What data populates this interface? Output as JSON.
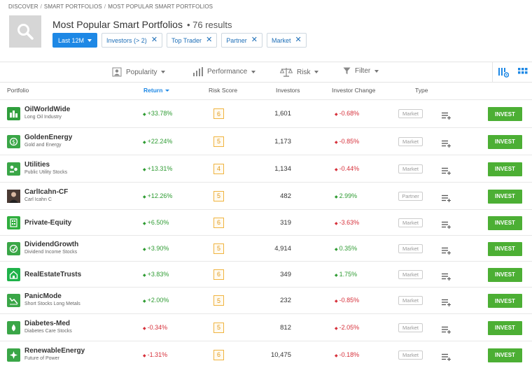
{
  "breadcrumb": [
    "DISCOVER",
    "SMART PORTFOLIOS",
    "MOST POPULAR SMART PORTFOLIOS"
  ],
  "header": {
    "title": "Most Popular Smart Portfolios",
    "result_count": "• 76 results"
  },
  "filters": {
    "period": "Last 12M",
    "chips": [
      "Investors (> 2)",
      "Top Trader",
      "Partner",
      "Market"
    ]
  },
  "toolbar": {
    "popularity": "Popularity",
    "performance": "Performance",
    "risk": "Risk",
    "filter": "Filter"
  },
  "columns": {
    "portfolio": "Portfolio",
    "return": "Return",
    "risk": "Risk Score",
    "investors": "Investors",
    "change": "Investor Change",
    "type": "Type"
  },
  "invest_label": "INVEST",
  "rows": [
    {
      "name": "OilWorldWide",
      "sub": "Long Oil Industry",
      "ret": "+33.78%",
      "ret_dir": "pos",
      "risk": "6",
      "investors": "1,601",
      "change": "-0.68%",
      "change_dir": "neg",
      "type": "Market",
      "icon_color": "#2f9e3c"
    },
    {
      "name": "GoldenEnergy",
      "sub": "Gold and Energy",
      "ret": "+22.24%",
      "ret_dir": "pos",
      "risk": "5",
      "investors": "1,173",
      "change": "-0.85%",
      "change_dir": "neg",
      "type": "Market",
      "icon_color": "#3aa647"
    },
    {
      "name": "Utilities",
      "sub": "Public Utility Stocks",
      "ret": "+13.31%",
      "ret_dir": "pos",
      "risk": "4",
      "investors": "1,134",
      "change": "-0.44%",
      "change_dir": "neg",
      "type": "Market",
      "icon_color": "#3aa647"
    },
    {
      "name": "CarlIcahn-CF",
      "sub": "Carl Icahn C",
      "ret": "+12.26%",
      "ret_dir": "pos",
      "risk": "5",
      "investors": "482",
      "change": "2.99%",
      "change_dir": "pos",
      "type": "Partner",
      "icon_color": "#5a3f35"
    },
    {
      "name": "Private-Equity",
      "sub": "",
      "ret": "+6.50%",
      "ret_dir": "pos",
      "risk": "6",
      "investors": "319",
      "change": "-3.63%",
      "change_dir": "neg",
      "type": "Market",
      "icon_color": "#2fae3e"
    },
    {
      "name": "DividendGrowth",
      "sub": "Dividend Income Stocks",
      "ret": "+3.90%",
      "ret_dir": "pos",
      "risk": "5",
      "investors": "4,914",
      "change": "0.35%",
      "change_dir": "pos",
      "type": "Market",
      "icon_color": "#3aa647"
    },
    {
      "name": "RealEstateTrusts",
      "sub": "",
      "ret": "+3.83%",
      "ret_dir": "pos",
      "risk": "6",
      "investors": "349",
      "change": "1.75%",
      "change_dir": "pos",
      "type": "Market",
      "icon_color": "#1fb24a"
    },
    {
      "name": "PanicMode",
      "sub": "Short Stocks Long Metals",
      "ret": "+2.00%",
      "ret_dir": "pos",
      "risk": "5",
      "investors": "232",
      "change": "-0.85%",
      "change_dir": "neg",
      "type": "Market",
      "icon_color": "#3aa647"
    },
    {
      "name": "Diabetes-Med",
      "sub": "Diabetes Care Stocks",
      "ret": "-0.34%",
      "ret_dir": "neg",
      "risk": "5",
      "investors": "812",
      "change": "-2.05%",
      "change_dir": "neg",
      "type": "Market",
      "icon_color": "#3aa647"
    },
    {
      "name": "RenewableEnergy",
      "sub": "Future of Power",
      "ret": "-1.31%",
      "ret_dir": "neg",
      "risk": "6",
      "investors": "10,475",
      "change": "-0.18%",
      "change_dir": "neg",
      "type": "Market",
      "icon_color": "#3aa647"
    }
  ],
  "colors": {
    "accent": "#1e88e5",
    "positive": "#2e9b32",
    "negative": "#d6303a",
    "invest_button": "#4caf34",
    "risk_border": "#f0b440"
  }
}
